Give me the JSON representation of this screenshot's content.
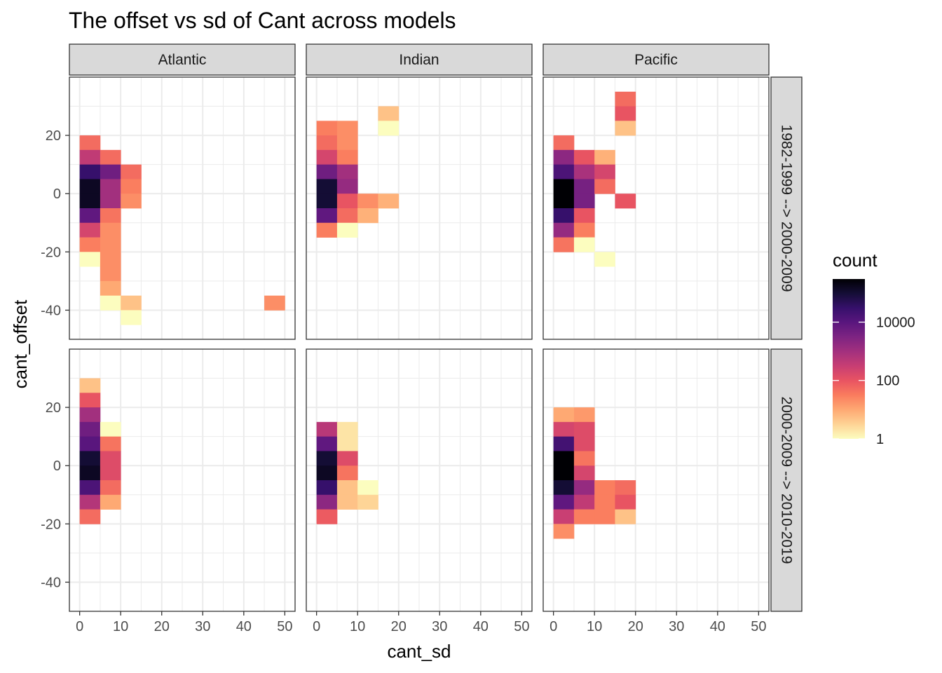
{
  "chart_data": {
    "type": "heatmap",
    "title": "The offset vs sd of Cant across models",
    "xlabel": "cant_sd",
    "ylabel": "cant_offset",
    "xlim": [
      -2.5,
      52.5
    ],
    "ylim": [
      -50,
      40
    ],
    "x_ticks": [
      0,
      10,
      20,
      30,
      40,
      50
    ],
    "y_ticks": [
      -40,
      -20,
      0,
      20
    ],
    "bin_width": 5,
    "bin_height": 5,
    "columns": [
      "Atlantic",
      "Indian",
      "Pacific"
    ],
    "rows": [
      "1982-1999 --> 2000-2009",
      "2000-2009 --> 2010-2019"
    ],
    "legend": {
      "title": "count",
      "scale": "log10",
      "labels": [
        "10000",
        "100",
        "1"
      ],
      "label_values": [
        10000,
        100,
        1
      ],
      "min": 1,
      "max": 300000
    },
    "colormap": [
      "#fcfdbf",
      "#fed395",
      "#fea973",
      "#fa7d5e",
      "#e95462",
      "#c83e73",
      "#a3307e",
      "#7e2482",
      "#5a167e",
      "#36106b",
      "#150e37",
      "#000004"
    ],
    "panels": [
      {
        "row": 0,
        "col": 0,
        "cells": [
          [
            2.5,
            17.5,
            50
          ],
          [
            2.5,
            12.5,
            400
          ],
          [
            2.5,
            7.5,
            30000
          ],
          [
            2.5,
            2.5,
            150000
          ],
          [
            2.5,
            -2.5,
            150000
          ],
          [
            2.5,
            -7.5,
            8000
          ],
          [
            2.5,
            -12.5,
            200
          ],
          [
            2.5,
            -17.5,
            30
          ],
          [
            2.5,
            -22.5,
            1
          ],
          [
            7.5,
            12.5,
            50
          ],
          [
            7.5,
            7.5,
            5000
          ],
          [
            7.5,
            2.5,
            1000
          ],
          [
            7.5,
            -2.5,
            1000
          ],
          [
            7.5,
            -7.5,
            40
          ],
          [
            7.5,
            -12.5,
            20
          ],
          [
            7.5,
            -17.5,
            20
          ],
          [
            7.5,
            -22.5,
            20
          ],
          [
            7.5,
            -27.5,
            20
          ],
          [
            7.5,
            -32.5,
            10
          ],
          [
            7.5,
            -37.5,
            1
          ],
          [
            12.5,
            7.5,
            50
          ],
          [
            12.5,
            2.5,
            30
          ],
          [
            12.5,
            -2.5,
            20
          ],
          [
            12.5,
            -37.5,
            5
          ],
          [
            12.5,
            -42.5,
            1
          ],
          [
            47.5,
            -37.5,
            20
          ]
        ]
      },
      {
        "row": 0,
        "col": 1,
        "cells": [
          [
            2.5,
            22.5,
            30
          ],
          [
            2.5,
            17.5,
            50
          ],
          [
            2.5,
            12.5,
            200
          ],
          [
            2.5,
            7.5,
            5000
          ],
          [
            2.5,
            2.5,
            100000
          ],
          [
            2.5,
            -2.5,
            100000
          ],
          [
            2.5,
            -7.5,
            8000
          ],
          [
            2.5,
            -12.5,
            30
          ],
          [
            7.5,
            22.5,
            20
          ],
          [
            7.5,
            17.5,
            20
          ],
          [
            7.5,
            12.5,
            30
          ],
          [
            7.5,
            7.5,
            1000
          ],
          [
            7.5,
            2.5,
            1500
          ],
          [
            7.5,
            -2.5,
            100
          ],
          [
            7.5,
            -7.5,
            50
          ],
          [
            7.5,
            -12.5,
            1
          ],
          [
            12.5,
            -2.5,
            20
          ],
          [
            12.5,
            -7.5,
            8
          ],
          [
            17.5,
            -2.5,
            8
          ],
          [
            17.5,
            27.5,
            5
          ],
          [
            17.5,
            22.5,
            1
          ]
        ]
      },
      {
        "row": 0,
        "col": 2,
        "cells": [
          [
            2.5,
            17.5,
            50
          ],
          [
            2.5,
            12.5,
            2000
          ],
          [
            2.5,
            7.5,
            15000
          ],
          [
            2.5,
            2.5,
            300000
          ],
          [
            2.5,
            -2.5,
            300000
          ],
          [
            2.5,
            -7.5,
            30000
          ],
          [
            2.5,
            -12.5,
            1500
          ],
          [
            2.5,
            -17.5,
            40
          ],
          [
            7.5,
            12.5,
            100
          ],
          [
            7.5,
            7.5,
            800
          ],
          [
            7.5,
            2.5,
            4000
          ],
          [
            7.5,
            -2.5,
            4000
          ],
          [
            7.5,
            -7.5,
            100
          ],
          [
            7.5,
            -12.5,
            30
          ],
          [
            7.5,
            -17.5,
            1
          ],
          [
            12.5,
            12.5,
            8
          ],
          [
            12.5,
            7.5,
            200
          ],
          [
            12.5,
            2.5,
            50
          ],
          [
            12.5,
            -22.5,
            1
          ],
          [
            17.5,
            32.5,
            50
          ],
          [
            17.5,
            27.5,
            100
          ],
          [
            17.5,
            22.5,
            5
          ],
          [
            17.5,
            -2.5,
            100
          ]
        ]
      },
      {
        "row": 1,
        "col": 0,
        "cells": [
          [
            2.5,
            27.5,
            5
          ],
          [
            2.5,
            22.5,
            100
          ],
          [
            2.5,
            17.5,
            1000
          ],
          [
            2.5,
            12.5,
            5000
          ],
          [
            2.5,
            7.5,
            10000
          ],
          [
            2.5,
            2.5,
            100000
          ],
          [
            2.5,
            -2.5,
            150000
          ],
          [
            2.5,
            -7.5,
            15000
          ],
          [
            2.5,
            -12.5,
            600
          ],
          [
            2.5,
            -17.5,
            50
          ],
          [
            7.5,
            12.5,
            1
          ],
          [
            7.5,
            7.5,
            40
          ],
          [
            7.5,
            2.5,
            150
          ],
          [
            7.5,
            -2.5,
            150
          ],
          [
            7.5,
            -7.5,
            50
          ],
          [
            7.5,
            -12.5,
            10
          ]
        ]
      },
      {
        "row": 1,
        "col": 1,
        "cells": [
          [
            2.5,
            12.5,
            500
          ],
          [
            2.5,
            7.5,
            8000
          ],
          [
            2.5,
            2.5,
            100000
          ],
          [
            2.5,
            -2.5,
            150000
          ],
          [
            2.5,
            -7.5,
            30000
          ],
          [
            2.5,
            -12.5,
            2000
          ],
          [
            2.5,
            -17.5,
            80
          ],
          [
            7.5,
            12.5,
            2
          ],
          [
            7.5,
            7.5,
            2
          ],
          [
            7.5,
            2.5,
            150
          ],
          [
            7.5,
            -2.5,
            40
          ],
          [
            7.5,
            -7.5,
            5
          ],
          [
            7.5,
            -12.5,
            5
          ],
          [
            12.5,
            -7.5,
            1
          ],
          [
            12.5,
            -12.5,
            3
          ]
        ]
      },
      {
        "row": 1,
        "col": 2,
        "cells": [
          [
            2.5,
            17.5,
            10
          ],
          [
            2.5,
            12.5,
            200
          ],
          [
            2.5,
            7.5,
            20000
          ],
          [
            2.5,
            2.5,
            300000
          ],
          [
            2.5,
            -2.5,
            300000
          ],
          [
            2.5,
            -7.5,
            100000
          ],
          [
            2.5,
            -12.5,
            8000
          ],
          [
            2.5,
            -17.5,
            300
          ],
          [
            2.5,
            -22.5,
            20
          ],
          [
            7.5,
            17.5,
            15
          ],
          [
            7.5,
            12.5,
            150
          ],
          [
            7.5,
            7.5,
            150
          ],
          [
            7.5,
            2.5,
            40
          ],
          [
            7.5,
            -2.5,
            200
          ],
          [
            7.5,
            -7.5,
            1500
          ],
          [
            7.5,
            -12.5,
            400
          ],
          [
            7.5,
            -17.5,
            30
          ],
          [
            12.5,
            -7.5,
            30
          ],
          [
            12.5,
            -12.5,
            30
          ],
          [
            12.5,
            -17.5,
            30
          ],
          [
            17.5,
            -7.5,
            50
          ],
          [
            17.5,
            -12.5,
            100
          ],
          [
            17.5,
            -17.5,
            5
          ]
        ]
      }
    ]
  }
}
